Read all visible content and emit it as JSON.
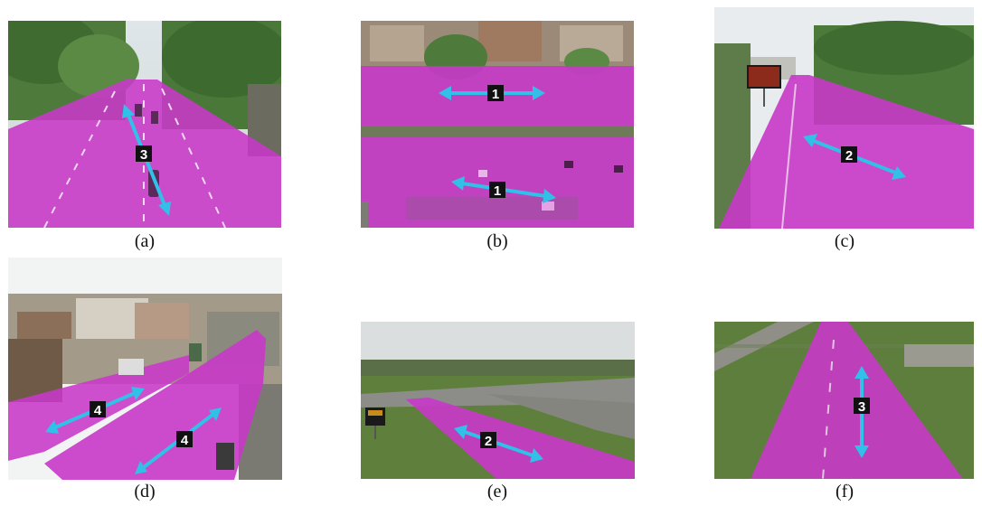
{
  "colors": {
    "road_overlay": "#c838c8",
    "arrow": "#31c0e8",
    "badge_bg": "#111111",
    "badge_text": "#ffffff"
  },
  "panels": [
    {
      "caption": "(a)",
      "arrows": [
        {
          "label": "3"
        }
      ]
    },
    {
      "caption": "(b)",
      "arrows": [
        {
          "label": "1"
        },
        {
          "label": "1"
        }
      ]
    },
    {
      "caption": "(c)",
      "arrows": [
        {
          "label": "2"
        }
      ]
    },
    {
      "caption": "(d)",
      "arrows": [
        {
          "label": "4"
        },
        {
          "label": "4"
        }
      ]
    },
    {
      "caption": "(e)",
      "arrows": [
        {
          "label": "2"
        }
      ]
    },
    {
      "caption": "(f)",
      "arrows": [
        {
          "label": "3"
        }
      ]
    }
  ]
}
